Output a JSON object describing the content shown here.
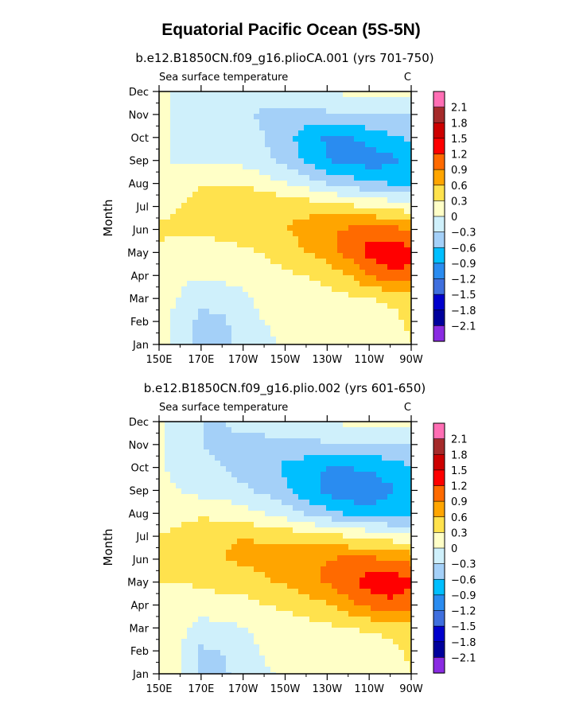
{
  "figure_title": "Equatorial Pacific Ocean (5S-5N)",
  "chart_data": [
    {
      "type": "heatmap",
      "title": "b.e12.B1850CN.f09_g16.plioCA.001 (yrs 701-750)",
      "subtitle_left": "Sea surface temperature",
      "subtitle_right": "C",
      "xlabel": "",
      "ylabel": "Month",
      "x_tick_labels": [
        "150E",
        "170E",
        "170W",
        "150W",
        "130W",
        "110W",
        "90W"
      ],
      "y_tick_labels": [
        "Jan",
        "Feb",
        "Mar",
        "Apr",
        "May",
        "Jun",
        "Jul",
        "Aug",
        "Sep",
        "Oct",
        "Nov",
        "Dec"
      ],
      "x_range_degE": [
        150,
        270
      ],
      "grid_x_degE": [
        150,
        160,
        170,
        180,
        190,
        200,
        210,
        220,
        230,
        240,
        250,
        260,
        270
      ],
      "months": [
        "Jan",
        "Feb",
        "Mar",
        "Apr",
        "May",
        "Jun",
        "Jul",
        "Aug",
        "Sep",
        "Oct",
        "Nov",
        "Dec"
      ],
      "values": [
        [
          0.05,
          -0.05,
          -0.4,
          -0.4,
          -0.2,
          -0.05,
          0.05,
          0.1,
          0.15,
          0.2,
          0.2,
          0.2,
          0.3
        ],
        [
          0.05,
          -0.05,
          -0.4,
          -0.35,
          -0.15,
          0.0,
          0.05,
          0.1,
          0.1,
          0.15,
          0.1,
          0.2,
          0.35
        ],
        [
          0.05,
          0.0,
          -0.2,
          -0.15,
          -0.05,
          0.1,
          0.1,
          0.15,
          0.2,
          0.25,
          0.3,
          0.35,
          0.45
        ],
        [
          0.15,
          0.05,
          0.05,
          0.05,
          0.1,
          0.2,
          0.25,
          0.3,
          0.4,
          0.6,
          0.9,
          1.1,
          1.1
        ],
        [
          0.25,
          0.15,
          0.15,
          0.2,
          0.25,
          0.3,
          0.45,
          0.6,
          0.75,
          1.0,
          1.3,
          1.45,
          1.3
        ],
        [
          0.35,
          0.35,
          0.35,
          0.4,
          0.45,
          0.5,
          0.6,
          0.7,
          0.85,
          0.95,
          1.05,
          1.0,
          0.9
        ],
        [
          0.2,
          0.3,
          0.4,
          0.5,
          0.6,
          0.6,
          0.55,
          0.5,
          0.45,
          0.35,
          0.3,
          0.2,
          0.1
        ],
        [
          0.1,
          0.2,
          0.3,
          0.3,
          0.25,
          0.15,
          0.0,
          -0.15,
          -0.3,
          -0.45,
          -0.55,
          -0.6,
          -0.65
        ],
        [
          0.05,
          -0.05,
          -0.05,
          -0.05,
          -0.1,
          -0.2,
          -0.4,
          -0.65,
          -0.9,
          -1.0,
          -1.05,
          -1.0,
          -0.7
        ],
        [
          0.05,
          -0.05,
          -0.1,
          -0.1,
          -0.2,
          -0.3,
          -0.5,
          -0.75,
          -0.95,
          -0.95,
          -0.8,
          -0.65,
          -0.55
        ],
        [
          0.1,
          -0.05,
          -0.1,
          -0.1,
          -0.25,
          -0.35,
          -0.4,
          -0.4,
          -0.35,
          -0.3,
          -0.3,
          -0.35,
          -0.3
        ],
        [
          0.05,
          -0.05,
          -0.05,
          -0.05,
          -0.1,
          -0.15,
          -0.1,
          -0.05,
          0.0,
          0.05,
          0.05,
          0.05,
          0.05
        ]
      ]
    },
    {
      "type": "heatmap",
      "title": "b.e12.B1850CN.f09_g16.plio.002 (yrs 601-650)",
      "subtitle_left": "Sea surface temperature",
      "subtitle_right": "C",
      "xlabel": "",
      "ylabel": "Month",
      "x_tick_labels": [
        "150E",
        "170E",
        "170W",
        "150W",
        "130W",
        "110W",
        "90W"
      ],
      "y_tick_labels": [
        "Jan",
        "Feb",
        "Mar",
        "Apr",
        "May",
        "Jun",
        "Jul",
        "Aug",
        "Sep",
        "Oct",
        "Nov",
        "Dec"
      ],
      "x_range_degE": [
        150,
        270
      ],
      "grid_x_degE": [
        150,
        160,
        170,
        180,
        190,
        200,
        210,
        220,
        230,
        240,
        250,
        260,
        270
      ],
      "months": [
        "Jan",
        "Feb",
        "Mar",
        "Apr",
        "May",
        "Jun",
        "Jul",
        "Aug",
        "Sep",
        "Oct",
        "Nov",
        "Dec"
      ],
      "values": [
        [
          0.05,
          0.0,
          -0.35,
          -0.35,
          -0.2,
          -0.05,
          0.05,
          0.1,
          0.15,
          0.15,
          0.2,
          0.2,
          0.3
        ],
        [
          0.1,
          0.05,
          -0.35,
          -0.3,
          -0.15,
          0.05,
          0.1,
          0.1,
          0.1,
          0.1,
          0.1,
          0.2,
          0.35
        ],
        [
          0.1,
          0.05,
          -0.1,
          -0.1,
          0.0,
          0.1,
          0.15,
          0.2,
          0.25,
          0.3,
          0.35,
          0.4,
          0.45
        ],
        [
          0.2,
          0.15,
          0.15,
          0.2,
          0.2,
          0.3,
          0.35,
          0.45,
          0.55,
          0.8,
          1.0,
          1.1,
          1.05
        ],
        [
          0.3,
          0.3,
          0.35,
          0.4,
          0.45,
          0.55,
          0.65,
          0.8,
          0.95,
          1.1,
          1.35,
          1.4,
          1.25
        ],
        [
          0.45,
          0.5,
          0.55,
          0.6,
          0.65,
          0.7,
          0.75,
          0.85,
          0.9,
          0.95,
          0.95,
          0.9,
          0.8
        ],
        [
          0.3,
          0.4,
          0.5,
          0.55,
          0.6,
          0.55,
          0.5,
          0.45,
          0.35,
          0.3,
          0.25,
          0.15,
          0.05
        ],
        [
          0.1,
          0.2,
          0.25,
          0.2,
          0.1,
          0.0,
          -0.15,
          -0.35,
          -0.5,
          -0.65,
          -0.75,
          -0.75,
          -0.7
        ],
        [
          0.05,
          0.0,
          -0.1,
          -0.15,
          -0.25,
          -0.35,
          -0.55,
          -0.8,
          -1.0,
          -1.15,
          -1.1,
          -0.95,
          -0.7
        ],
        [
          0.05,
          -0.1,
          -0.2,
          -0.3,
          -0.4,
          -0.5,
          -0.65,
          -0.8,
          -0.9,
          -0.9,
          -0.85,
          -0.75,
          -0.6
        ],
        [
          0.05,
          -0.1,
          -0.3,
          -0.4,
          -0.4,
          -0.4,
          -0.4,
          -0.35,
          -0.35,
          -0.3,
          -0.3,
          -0.35,
          -0.3
        ],
        [
          0.05,
          -0.1,
          -0.3,
          -0.3,
          -0.2,
          -0.15,
          -0.1,
          -0.05,
          0.0,
          0.05,
          0.05,
          0.05,
          0.05
        ]
      ]
    }
  ],
  "colorbar": {
    "labels": [
      "2.1",
      "1.8",
      "1.5",
      "1.2",
      "0.9",
      "0.6",
      "0.3",
      "0",
      "-0.3",
      "-0.6",
      "-0.9",
      "-1.2",
      "-1.5",
      "-1.8",
      "-2.1"
    ],
    "levels": [
      -2.1,
      -1.8,
      -1.5,
      -1.2,
      -0.9,
      -0.6,
      -0.3,
      0,
      0.3,
      0.6,
      0.9,
      1.2,
      1.5,
      1.8,
      2.1
    ],
    "colors_low_to_high": [
      "#8a2be2",
      "#00009c",
      "#0000cd",
      "#3f6fde",
      "#2a8cf0",
      "#00bfff",
      "#a4d0f8",
      "#cff0fb",
      "#ffffc7",
      "#ffe24d",
      "#ffa500",
      "#ff6a00",
      "#ff0000",
      "#cd0000",
      "#a52a2a",
      "#ff6eb4"
    ]
  }
}
